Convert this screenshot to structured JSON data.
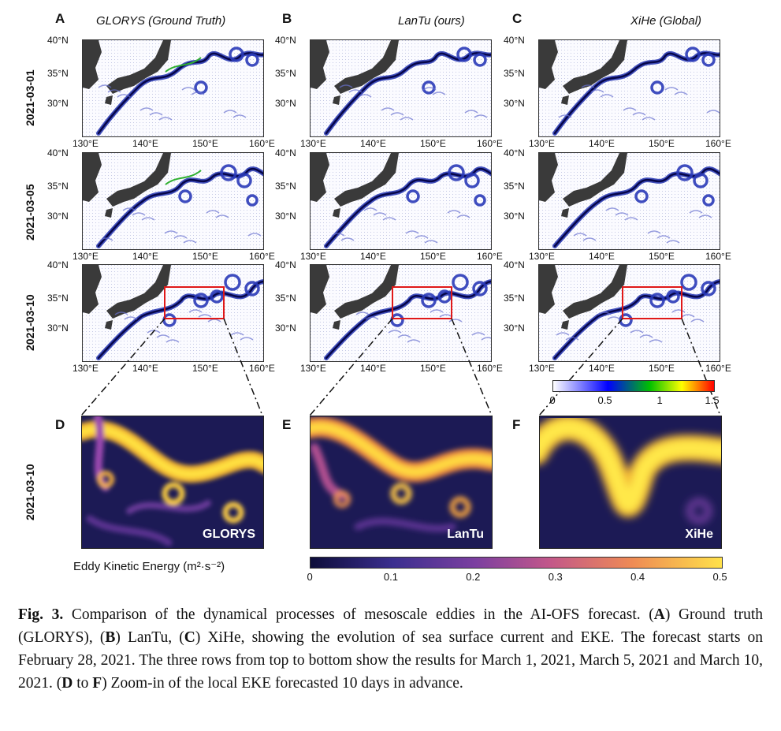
{
  "panels": {
    "letters": [
      "A",
      "B",
      "C",
      "D",
      "E",
      "F"
    ],
    "column_titles": [
      "GLORYS (Ground Truth)",
      "LanTu (ours)",
      "XiHe (Global)"
    ],
    "row_dates": [
      "2021-03-01",
      "2021-03-05",
      "2021-03-10"
    ],
    "zoom_row_date": "2021-03-10",
    "zoom_labels": [
      "GLORYS",
      "LanTu",
      "XiHe"
    ]
  },
  "map_axes": {
    "lat_ticks": [
      "40°N",
      "35°N",
      "30°N"
    ],
    "lon_ticks": [
      "130°E",
      "140°E",
      "150°E",
      "160°E"
    ]
  },
  "current_colorbar": {
    "ticks": [
      "0",
      "0.5",
      "1",
      "1.5"
    ],
    "colors": [
      "#ffffff",
      "#0000ff",
      "#00c000",
      "#ffff00",
      "#ff0000"
    ]
  },
  "eke_colorbar": {
    "title": "Eddy Kinetic Energy (m²·s⁻²)",
    "ticks": [
      "0",
      "0.1",
      "0.2",
      "0.3",
      "0.4",
      "0.5"
    ],
    "colors": [
      "#0d0d3a",
      "#3b2f8f",
      "#7b3fa0",
      "#c2578a",
      "#ee8a55",
      "#ffe14a"
    ]
  },
  "caption": {
    "fig_label": "Fig. 3.",
    "parts": [
      {
        "t": " Comparison of the dynamical processes of mesoscale eddies in the AI-OFS forecast. (",
        "b": false
      },
      {
        "t": "A",
        "b": true
      },
      {
        "t": ") Ground truth (GLORYS), (",
        "b": false
      },
      {
        "t": "B",
        "b": true
      },
      {
        "t": ") LanTu, (",
        "b": false
      },
      {
        "t": "C",
        "b": true
      },
      {
        "t": ") XiHe, showing the evolution of sea surface current and EKE. The forecast starts on February 28, 2021. The three rows from top to bottom show the results for March 1, 2021, March 5, 2021 and March 10, 2021. (",
        "b": false
      },
      {
        "t": "D",
        "b": true
      },
      {
        "t": " to ",
        "b": false
      },
      {
        "t": "F",
        "b": true
      },
      {
        "t": ") Zoom-in of the local EKE forecasted 10 days in advance.",
        "b": false
      }
    ]
  }
}
